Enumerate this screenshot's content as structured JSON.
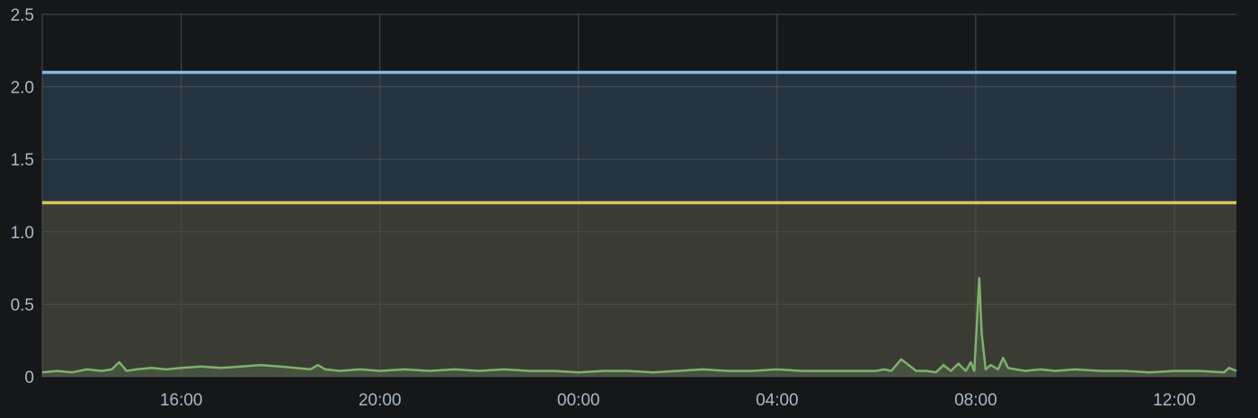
{
  "chart_data": {
    "type": "line",
    "title": "",
    "xlabel": "",
    "ylabel": "",
    "ylim": [
      0,
      2.5
    ],
    "grid": true,
    "legend": "none",
    "y_ticks": [
      {
        "value": 0,
        "label": "0"
      },
      {
        "value": 0.5,
        "label": "0.5"
      },
      {
        "value": 1.0,
        "label": "1.0"
      },
      {
        "value": 1.5,
        "label": "1.5"
      },
      {
        "value": 2.0,
        "label": "2.0"
      },
      {
        "value": 2.5,
        "label": "2.5"
      }
    ],
    "x_range_hours": [
      13.2,
      37.25
    ],
    "x_ticks": [
      {
        "value": 16,
        "label": "16:00"
      },
      {
        "value": 20,
        "label": "20:00"
      },
      {
        "value": 24,
        "label": "00:00"
      },
      {
        "value": 28,
        "label": "04:00"
      },
      {
        "value": 32,
        "label": "08:00"
      },
      {
        "value": 36,
        "label": "12:00"
      }
    ],
    "thresholds": [
      {
        "value": 2.1,
        "color": "#8ab8d8",
        "fill": "#243340"
      },
      {
        "value": 1.2,
        "color": "#e0c45c",
        "fill": "#3a3c34"
      }
    ],
    "series": [
      {
        "color": "#7eb26d",
        "fill": "rgba(126,178,109,0.18)",
        "x": [
          13.2,
          13.5,
          13.8,
          14.1,
          14.4,
          14.6,
          14.75,
          14.9,
          15.1,
          15.4,
          15.7,
          16.0,
          16.4,
          16.8,
          17.2,
          17.6,
          18.0,
          18.3,
          18.6,
          18.75,
          18.9,
          19.2,
          19.6,
          20.0,
          20.5,
          21.0,
          21.5,
          22.0,
          22.5,
          23.0,
          23.5,
          24.0,
          24.5,
          25.0,
          25.5,
          26.0,
          26.5,
          27.0,
          27.5,
          28.0,
          28.5,
          29.0,
          29.5,
          30.0,
          30.15,
          30.3,
          30.5,
          30.8,
          31.0,
          31.2,
          31.35,
          31.5,
          31.65,
          31.8,
          31.9,
          31.97,
          32.02,
          32.07,
          32.12,
          32.2,
          32.3,
          32.45,
          32.55,
          32.65,
          32.8,
          33.0,
          33.3,
          33.6,
          34.0,
          34.5,
          35.0,
          35.5,
          36.0,
          36.5,
          37.0,
          37.1,
          37.25
        ],
        "y": [
          0.03,
          0.04,
          0.03,
          0.05,
          0.04,
          0.05,
          0.1,
          0.04,
          0.05,
          0.06,
          0.05,
          0.06,
          0.07,
          0.06,
          0.07,
          0.08,
          0.07,
          0.06,
          0.05,
          0.08,
          0.05,
          0.04,
          0.05,
          0.04,
          0.05,
          0.04,
          0.05,
          0.04,
          0.05,
          0.04,
          0.04,
          0.03,
          0.04,
          0.04,
          0.03,
          0.04,
          0.05,
          0.04,
          0.04,
          0.05,
          0.04,
          0.04,
          0.04,
          0.04,
          0.05,
          0.04,
          0.12,
          0.04,
          0.04,
          0.03,
          0.08,
          0.04,
          0.09,
          0.04,
          0.1,
          0.04,
          0.35,
          0.68,
          0.3,
          0.05,
          0.08,
          0.05,
          0.13,
          0.06,
          0.05,
          0.04,
          0.05,
          0.04,
          0.05,
          0.04,
          0.04,
          0.03,
          0.04,
          0.04,
          0.03,
          0.06,
          0.04
        ]
      }
    ]
  }
}
